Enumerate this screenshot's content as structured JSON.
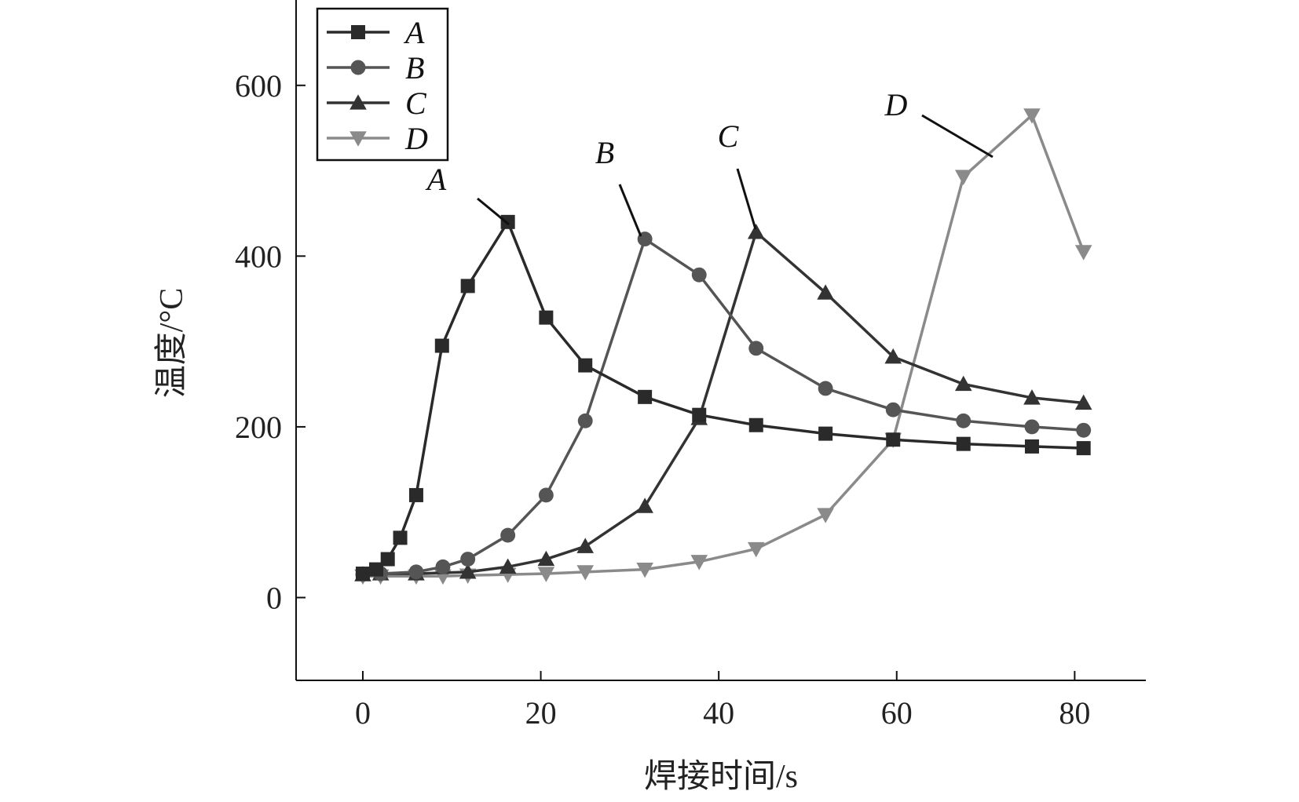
{
  "chart_data": {
    "type": "line",
    "xlabel": "焊接时间/s",
    "ylabel": "温度/°C",
    "xlim": [
      -7.5,
      88
    ],
    "ylim": [
      -97,
      700
    ],
    "xticks": [
      0,
      20,
      40,
      60,
      80
    ],
    "yticks": [
      0,
      200,
      400,
      600
    ],
    "grid": false,
    "legend_position": "top-left",
    "series": [
      {
        "name": "A",
        "marker": "square",
        "color": "#2a2a2a",
        "x": [
          0,
          1.5,
          2.8,
          4.2,
          6.0,
          8.9,
          11.8,
          16.3,
          20.6,
          25.0,
          31.7,
          37.8,
          44.2,
          52.0,
          59.6,
          67.5,
          75.2,
          81.0
        ],
        "y": [
          28,
          33,
          45,
          70,
          120,
          295,
          365,
          440,
          328,
          272,
          235,
          214,
          202,
          192,
          185,
          180,
          177,
          175
        ]
      },
      {
        "name": "B",
        "marker": "circle",
        "color": "#555555",
        "x": [
          0,
          2.0,
          6.0,
          9.0,
          11.8,
          16.3,
          20.6,
          25.0,
          31.7,
          37.8,
          44.2,
          52.0,
          59.6,
          67.5,
          75.2,
          81.0
        ],
        "y": [
          27,
          28,
          30,
          36,
          45,
          73,
          120,
          207,
          420,
          378,
          292,
          245,
          220,
          207,
          200,
          196
        ]
      },
      {
        "name": "C",
        "marker": "triangle-up",
        "color": "#333333",
        "x": [
          0,
          2.0,
          6.0,
          11.8,
          16.3,
          20.6,
          25.0,
          31.7,
          37.8,
          44.2,
          52.0,
          59.6,
          67.5,
          75.2,
          81.0
        ],
        "y": [
          27,
          28,
          28,
          30,
          36,
          45,
          60,
          107,
          210,
          428,
          357,
          282,
          250,
          234,
          228
        ]
      },
      {
        "name": "D",
        "marker": "triangle-down",
        "color": "#8a8a8a",
        "x": [
          0,
          2.0,
          6.0,
          9.0,
          11.8,
          16.3,
          20.6,
          25.0,
          31.7,
          37.8,
          44.2,
          52.0,
          59.6,
          67.5,
          75.2,
          81.0
        ],
        "y": [
          25,
          25,
          25,
          25,
          26,
          27,
          28,
          30,
          33,
          42,
          57,
          97,
          185,
          493,
          565,
          405
        ]
      }
    ],
    "annotations": [
      {
        "text": "A",
        "series": "A"
      },
      {
        "text": "B",
        "series": "B"
      },
      {
        "text": "C",
        "series": "C"
      },
      {
        "text": "D",
        "series": "D"
      }
    ]
  }
}
